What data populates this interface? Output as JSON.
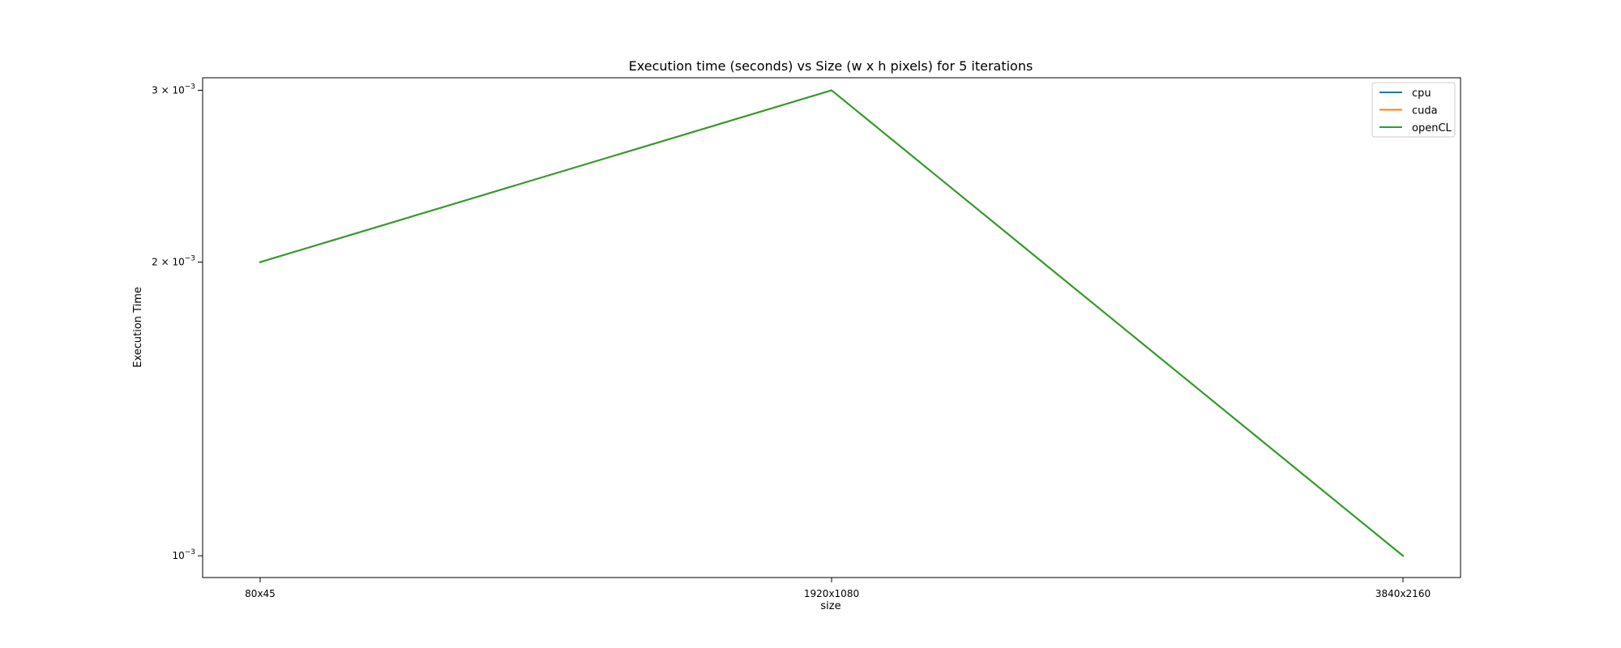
{
  "chart_data": {
    "type": "line",
    "title": "Execution time (seconds) vs Size (w x h pixels) for 5 iterations",
    "xlabel": "size",
    "ylabel": "Execution Time",
    "categories": [
      "80x45",
      "1920x1080",
      "3840x2160"
    ],
    "yscale": "log",
    "ylim": [
      0.00095,
      0.00309
    ],
    "yticks": [
      {
        "value": 0.001,
        "base": "10",
        "exp": "−3"
      },
      {
        "value": 0.002,
        "base": "2 × 10",
        "exp": "−3"
      },
      {
        "value": 0.003,
        "base": "3 × 10",
        "exp": "−3"
      }
    ],
    "grid": false,
    "legend_position": "top-right",
    "series": [
      {
        "name": "cpu",
        "color": "#1f77b4",
        "values": [
          0.002,
          0.003,
          0.001
        ]
      },
      {
        "name": "cuda",
        "color": "#ff7f0e",
        "values": [
          0.002,
          0.003,
          0.001
        ]
      },
      {
        "name": "openCL",
        "color": "#2ca02c",
        "values": [
          0.002,
          0.003,
          0.001
        ]
      }
    ]
  }
}
